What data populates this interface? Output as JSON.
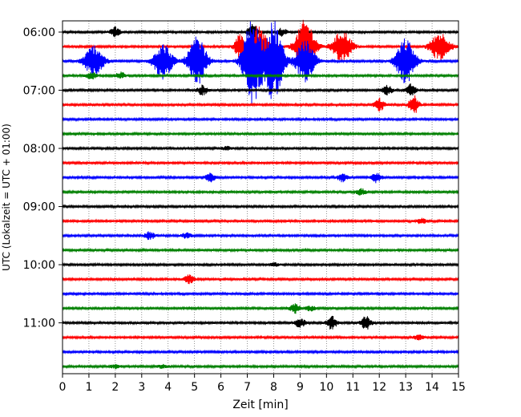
{
  "chart_data": {
    "type": "line",
    "title": "",
    "xlabel": "Zeit  [min]",
    "ylabel": "UTC (Lokalzeit = UTC + 01:00)",
    "xlim": [
      0,
      15
    ],
    "x_ticks": [
      "0",
      "1",
      "2",
      "3",
      "4",
      "5",
      "6",
      "7",
      "8",
      "9",
      "10",
      "11",
      "12",
      "13",
      "14",
      "15"
    ],
    "y_ticks": [
      "06:00",
      "07:00",
      "08:00",
      "09:00",
      "10:00",
      "11:00"
    ],
    "grid": "vertical dotted",
    "legend": "none",
    "colors": [
      "#000000",
      "#ff0000",
      "#0000ff",
      "#008000"
    ],
    "traces": [
      {
        "start": "06:00",
        "color": "black",
        "events": [
          {
            "t": 2.0,
            "amp": 6
          },
          {
            "t": 7.2,
            "amp": 10
          },
          {
            "t": 8.3,
            "amp": 5
          }
        ]
      },
      {
        "start": "06:15",
        "color": "red",
        "events": [
          {
            "t": 6.7,
            "amp": 14
          },
          {
            "t": 7.4,
            "amp": 25
          },
          {
            "t": 9.2,
            "amp": 34
          },
          {
            "t": 10.6,
            "amp": 20
          },
          {
            "t": 14.3,
            "amp": 18
          }
        ]
      },
      {
        "start": "06:30",
        "color": "blue",
        "events": [
          {
            "t": 1.2,
            "amp": 20
          },
          {
            "t": 3.8,
            "amp": 22
          },
          {
            "t": 5.1,
            "amp": 30
          },
          {
            "t": 7.2,
            "amp": 55
          },
          {
            "t": 8.0,
            "amp": 50
          },
          {
            "t": 9.2,
            "amp": 26
          },
          {
            "t": 13.0,
            "amp": 28
          }
        ]
      },
      {
        "start": "06:45",
        "color": "green",
        "events": [
          {
            "t": 1.1,
            "amp": 4
          },
          {
            "t": 2.2,
            "amp": 4
          }
        ]
      },
      {
        "start": "07:00",
        "color": "black",
        "events": [
          {
            "t": 5.3,
            "amp": 6
          },
          {
            "t": 12.3,
            "amp": 6
          },
          {
            "t": 13.2,
            "amp": 8
          }
        ]
      },
      {
        "start": "07:15",
        "color": "red",
        "events": [
          {
            "t": 12.0,
            "amp": 8
          },
          {
            "t": 13.3,
            "amp": 12
          }
        ]
      },
      {
        "start": "07:30",
        "color": "blue",
        "events": []
      },
      {
        "start": "07:45",
        "color": "green",
        "events": []
      },
      {
        "start": "08:00",
        "color": "black",
        "events": [
          {
            "t": 6.2,
            "amp": 2
          }
        ]
      },
      {
        "start": "08:15",
        "color": "red",
        "events": []
      },
      {
        "start": "08:30",
        "color": "blue",
        "events": [
          {
            "t": 5.6,
            "amp": 5
          },
          {
            "t": 10.6,
            "amp": 5
          },
          {
            "t": 11.9,
            "amp": 6
          }
        ]
      },
      {
        "start": "08:45",
        "color": "green",
        "events": [
          {
            "t": 11.3,
            "amp": 4
          }
        ]
      },
      {
        "start": "09:00",
        "color": "black",
        "events": []
      },
      {
        "start": "09:15",
        "color": "red",
        "events": [
          {
            "t": 13.6,
            "amp": 3
          }
        ]
      },
      {
        "start": "09:30",
        "color": "blue",
        "events": [
          {
            "t": 3.3,
            "amp": 5
          },
          {
            "t": 4.7,
            "amp": 3
          }
        ]
      },
      {
        "start": "09:45",
        "color": "green",
        "events": []
      },
      {
        "start": "10:00",
        "color": "black",
        "events": [
          {
            "t": 8.0,
            "amp": 2
          }
        ]
      },
      {
        "start": "10:15",
        "color": "red",
        "events": [
          {
            "t": 4.8,
            "amp": 5
          }
        ]
      },
      {
        "start": "10:30",
        "color": "blue",
        "events": []
      },
      {
        "start": "10:45",
        "color": "green",
        "events": [
          {
            "t": 8.8,
            "amp": 6
          },
          {
            "t": 9.4,
            "amp": 3
          }
        ]
      },
      {
        "start": "11:00",
        "color": "black",
        "events": [
          {
            "t": 9.0,
            "amp": 6
          },
          {
            "t": 10.2,
            "amp": 8
          },
          {
            "t": 11.5,
            "amp": 8
          }
        ]
      },
      {
        "start": "11:15",
        "color": "red",
        "events": [
          {
            "t": 13.5,
            "amp": 3
          }
        ]
      },
      {
        "start": "11:30",
        "color": "blue",
        "events": []
      },
      {
        "start": "11:45",
        "color": "green",
        "events": [
          {
            "t": 2.0,
            "amp": 2
          },
          {
            "t": 3.8,
            "amp": 2
          }
        ]
      }
    ]
  }
}
